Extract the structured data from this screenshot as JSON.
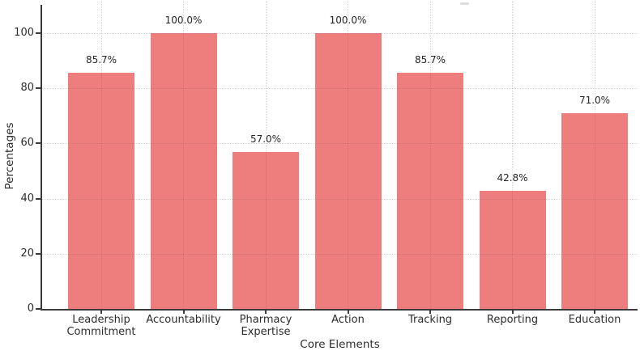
{
  "chart_data": {
    "type": "bar",
    "title": "",
    "xlabel": "Core Elements",
    "ylabel": "Percentages",
    "categories": [
      "Leadership\nCommitment",
      "Accountability",
      "Pharmacy\nExpertise",
      "Action",
      "Tracking",
      "Reporting",
      "Education"
    ],
    "values": [
      85.7,
      100.0,
      57.0,
      100.0,
      85.7,
      42.8,
      71.0
    ],
    "value_labels": [
      "85.7%",
      "100.0%",
      "57.0%",
      "100.0%",
      "85.7%",
      "42.8%",
      "71.0%"
    ],
    "y_ticks": [
      0,
      20,
      40,
      60,
      80,
      100
    ],
    "ylim": [
      0,
      110
    ],
    "bar_color": "#ee7e7e",
    "grid": true,
    "gridline_style": "dotted",
    "legend": null
  }
}
